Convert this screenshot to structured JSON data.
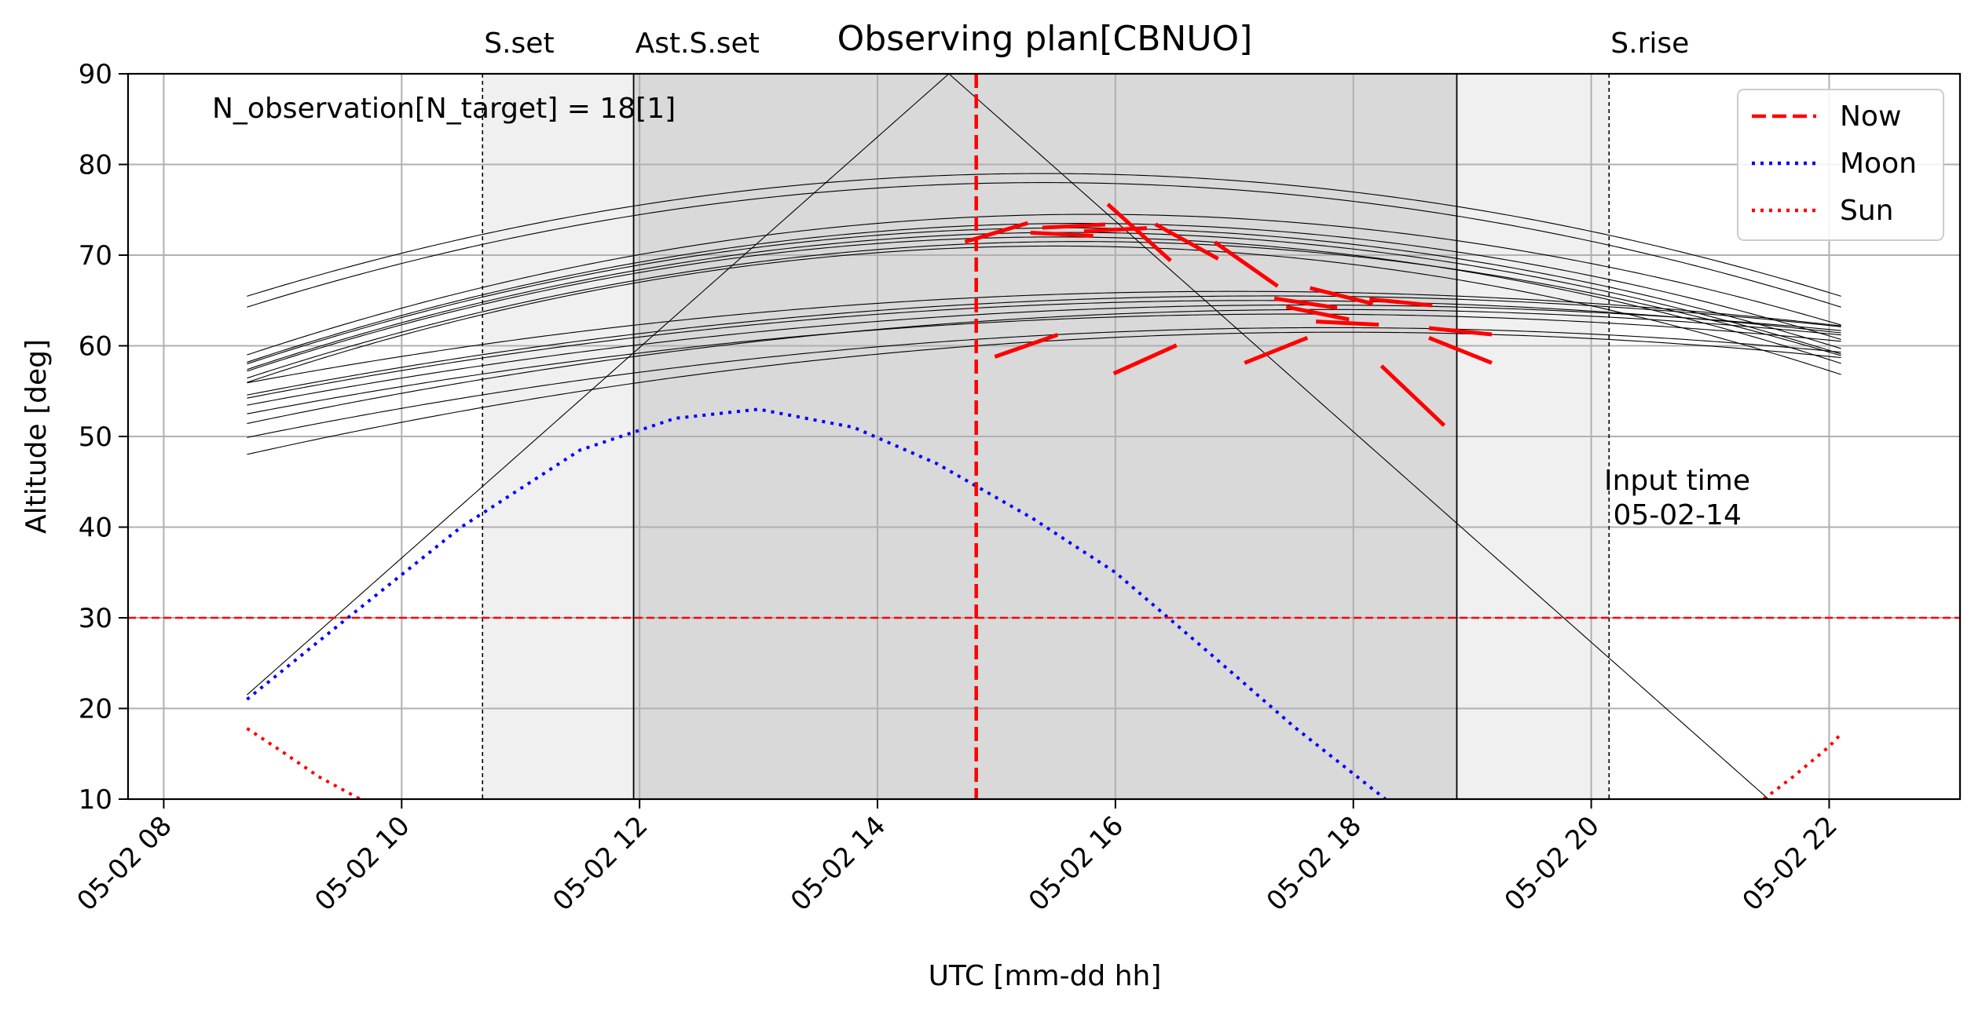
{
  "chart_data": {
    "type": "line",
    "title": "Observing plan[CBNUO]",
    "xlabel": "UTC [mm-dd hh]",
    "ylabel": "Altitude [deg]",
    "xlim_hours": [
      7.7,
      23.1
    ],
    "ylim": [
      10,
      90
    ],
    "x_ticks": [
      {
        "value": 8,
        "label": "05-02 08"
      },
      {
        "value": 10,
        "label": "05-02 10"
      },
      {
        "value": 12,
        "label": "05-02 12"
      },
      {
        "value": 14,
        "label": "05-02 14"
      },
      {
        "value": 16,
        "label": "05-02 16"
      },
      {
        "value": 18,
        "label": "05-02 18"
      },
      {
        "value": 20,
        "label": "05-02 20"
      },
      {
        "value": 22,
        "label": "05-02 22"
      }
    ],
    "y_ticks": [
      10,
      20,
      30,
      40,
      50,
      60,
      70,
      80,
      90
    ],
    "grid": true,
    "legend_position": "top-right",
    "legend": [
      {
        "label": "Now",
        "color": "#ff0000",
        "style": "dashed"
      },
      {
        "label": "Moon",
        "color": "#0000ff",
        "style": "dotted"
      },
      {
        "label": "Sun",
        "color": "#ff0000",
        "style": "dotted"
      }
    ],
    "annotation_text": "N_observation[N_target] = 18[1]",
    "input_time_label": "Input time\n 05-02-14",
    "altitude_limit": 30,
    "now_hour": 14.83,
    "events": [
      {
        "label": "S.set",
        "hour": 10.68,
        "style": "dashed"
      },
      {
        "label": "Ast.S.set",
        "hour": 11.95,
        "style": "solid"
      },
      {
        "label": "",
        "hour": 18.87,
        "style": "solid"
      },
      {
        "label": "S.rise",
        "hour": 20.15,
        "style": "dashed"
      }
    ],
    "twilight_bands": [
      {
        "from_hour": 10.68,
        "to_hour": 11.95,
        "shade": "light"
      },
      {
        "from_hour": 11.95,
        "to_hour": 18.87,
        "shade": "dark"
      },
      {
        "from_hour": 18.87,
        "to_hour": 20.15,
        "shade": "light"
      }
    ],
    "colors": {
      "now": "#ff0000",
      "moon": "#0000ff",
      "sun": "#ff0000",
      "targets": "#000000",
      "band_light": "#f0f0f0",
      "band_dark": "#d9d9d9",
      "grid": "#b0b0b0"
    },
    "moon": {
      "x": [
        8.7,
        9.5,
        10.5,
        11.5,
        12.3,
        13.0,
        13.8,
        14.5,
        15.3,
        16.0,
        16.8,
        17.5,
        18.27
      ],
      "y": [
        21,
        29.5,
        40,
        48.5,
        52,
        53,
        51,
        47,
        41,
        35,
        26,
        18,
        10
      ]
    },
    "sun": [
      {
        "x": [
          8.7,
          9.0,
          9.3,
          9.65
        ],
        "y": [
          17.8,
          15.2,
          12.5,
          10
        ]
      },
      {
        "x": [
          21.45,
          21.7,
          22.0,
          22.1
        ],
        "y": [
          10,
          12.5,
          15.8,
          17.2
        ]
      }
    ],
    "targets": [
      {
        "rise": 0.62,
        "peak": 90,
        "peak_hour": 14.6,
        "start": 8.7,
        "end": 21.7
      },
      {
        "rise": 0.43,
        "peak": 79,
        "peak_hour": 15.4,
        "start": 8.7,
        "end": 22.1
      },
      {
        "rise": 0.43,
        "peak": 78,
        "peak_hour": 15.4,
        "start": 8.7,
        "end": 22.1
      },
      {
        "rise": 0.42,
        "peak": 74.5,
        "peak_hour": 15.8,
        "start": 8.7,
        "end": 22.1
      },
      {
        "rise": 0.42,
        "peak": 73.5,
        "peak_hour": 15.7,
        "start": 8.7,
        "end": 22.1
      },
      {
        "rise": 0.42,
        "peak": 73,
        "peak_hour": 15.6,
        "start": 8.7,
        "end": 22.1
      },
      {
        "rise": 0.42,
        "peak": 72.5,
        "peak_hour": 15.6,
        "start": 8.7,
        "end": 22.1
      },
      {
        "rise": 0.42,
        "peak": 72,
        "peak_hour": 15.5,
        "start": 8.7,
        "end": 22.1
      },
      {
        "rise": 0.41,
        "peak": 71.5,
        "peak_hour": 15.7,
        "start": 8.7,
        "end": 22.1
      },
      {
        "rise": 0.42,
        "peak": 71,
        "peak_hour": 15.5,
        "start": 8.7,
        "end": 22.1
      },
      {
        "rise": 0.27,
        "peak": 66,
        "peak_hour": 17.0,
        "start": 8.7,
        "end": 22.1
      },
      {
        "rise": 0.27,
        "peak": 65.5,
        "peak_hour": 17.3,
        "start": 8.7,
        "end": 22.1
      },
      {
        "rise": 0.27,
        "peak": 65,
        "peak_hour": 17.2,
        "start": 8.7,
        "end": 22.1
      },
      {
        "rise": 0.26,
        "peak": 64.5,
        "peak_hour": 17.6,
        "start": 8.7,
        "end": 22.1
      },
      {
        "rise": 0.27,
        "peak": 64,
        "peak_hour": 17.8,
        "start": 8.7,
        "end": 22.1
      },
      {
        "rise": 0.26,
        "peak": 63.5,
        "peak_hour": 17.5,
        "start": 8.7,
        "end": 22.1
      },
      {
        "rise": 0.26,
        "peak": 62,
        "peak_hour": 17.8,
        "start": 8.7,
        "end": 22.1
      },
      {
        "rise": 0.27,
        "peak": 61.5,
        "peak_hour": 17.9,
        "start": 8.7,
        "end": 22.1
      }
    ],
    "observations": [
      {
        "hour": 15.0,
        "alt": 72.5
      },
      {
        "hour": 15.65,
        "alt": 73.2
      },
      {
        "hour": 15.55,
        "alt": 72.3
      },
      {
        "hour": 16.0,
        "alt": 72.8
      },
      {
        "hour": 16.6,
        "alt": 71.5
      },
      {
        "hour": 16.2,
        "alt": 72.5
      },
      {
        "hour": 17.1,
        "alt": 69.0
      },
      {
        "hour": 17.9,
        "alt": 65.5
      },
      {
        "hour": 18.4,
        "alt": 64.8
      },
      {
        "hour": 17.6,
        "alt": 64.7
      },
      {
        "hour": 18.9,
        "alt": 61.6
      },
      {
        "hour": 18.9,
        "alt": 59.5
      },
      {
        "hour": 17.95,
        "alt": 62.5
      },
      {
        "hour": 18.5,
        "alt": 54.5
      },
      {
        "hour": 15.25,
        "alt": 60.0
      },
      {
        "hour": 16.25,
        "alt": 58.5
      },
      {
        "hour": 17.35,
        "alt": 59.5
      },
      {
        "hour": 17.7,
        "alt": 63.6
      }
    ]
  }
}
